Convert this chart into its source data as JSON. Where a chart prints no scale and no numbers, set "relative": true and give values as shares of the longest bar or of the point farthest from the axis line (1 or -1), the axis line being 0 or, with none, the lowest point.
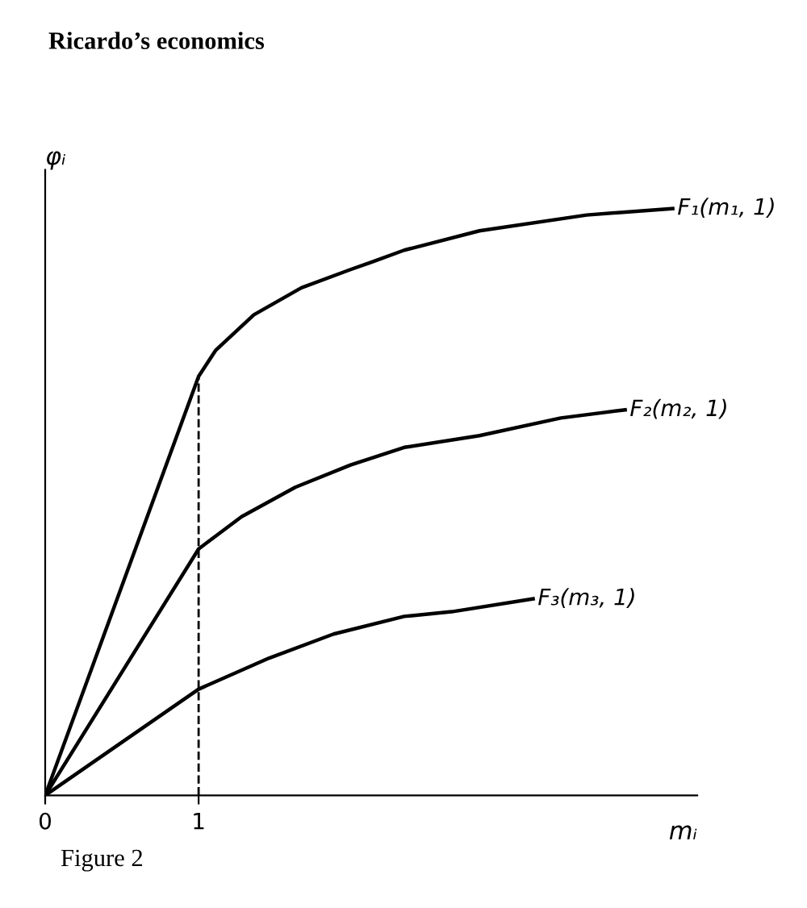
{
  "chart_data": {
    "type": "line",
    "title": "Ricardo’s economics",
    "xlabel": "mᵢ",
    "ylabel": "φᵢ",
    "relative": true,
    "xlim": [
      0,
      4.25
    ],
    "xticks": [
      0,
      1
    ],
    "tick_labels": "x",
    "grid": false,
    "legend": false,
    "marker": "none",
    "line_style": "solid",
    "series": [
      {
        "name": "F₁(m₁, 1)",
        "color": "#000000",
        "x": [
          0,
          1,
          1.11,
          1.36,
          1.67,
          1.99,
          2.13,
          2.34,
          2.83,
          3.53,
          4.09
        ],
        "values": [
          0,
          0.714,
          0.758,
          0.819,
          0.865,
          0.896,
          0.909,
          0.929,
          0.962,
          0.989,
          1
        ]
      },
      {
        "name": "F₂(m₂, 1)",
        "color": "#000000",
        "x": [
          0,
          1,
          1.28,
          1.63,
          1.99,
          2.34,
          2.83,
          3.36,
          3.78
        ],
        "values": [
          0,
          0.42,
          0.475,
          0.525,
          0.563,
          0.593,
          0.613,
          0.643,
          0.657
        ]
      },
      {
        "name": "F₃(m₃, 1)",
        "color": "#000000",
        "x": [
          0,
          1,
          1.46,
          1.88,
          2.34,
          2.65,
          3.18
        ],
        "values": [
          0,
          0.181,
          0.234,
          0.275,
          0.305,
          0.313,
          0.335
        ]
      }
    ],
    "ref_lines": [
      {
        "axis": "x",
        "value": 1,
        "label": null,
        "color": "#000000",
        "line_style": "dashed"
      }
    ],
    "annotations": [
      "Figure 2"
    ]
  }
}
